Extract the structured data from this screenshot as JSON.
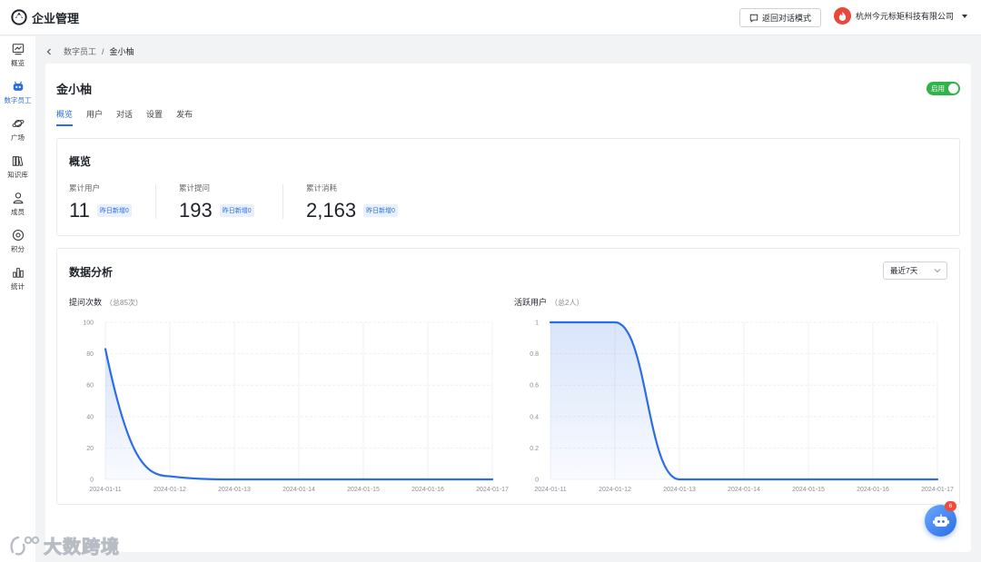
{
  "topbar": {
    "app_title": "企业管理",
    "back_chat_label": "返回对话模式",
    "company_name": "杭州今元标矩科技有限公司"
  },
  "sidenav": {
    "items": [
      {
        "label": "概览",
        "icon": "chart-line-icon"
      },
      {
        "label": "数字员工",
        "icon": "robot-icon",
        "active": true
      },
      {
        "label": "广场",
        "icon": "planet-icon"
      },
      {
        "label": "知识库",
        "icon": "books-icon"
      },
      {
        "label": "成员",
        "icon": "user-icon"
      },
      {
        "label": "积分",
        "icon": "coin-icon"
      },
      {
        "label": "统计",
        "icon": "bar-chart-icon"
      }
    ]
  },
  "breadcrumb": {
    "parent": "数字员工",
    "separator": "/",
    "current": "金小柚"
  },
  "employee": {
    "name": "金小柚",
    "toggle_label": "启用",
    "enabled": true
  },
  "tabs": [
    {
      "label": "概览",
      "active": true
    },
    {
      "label": "用户"
    },
    {
      "label": "对话"
    },
    {
      "label": "设置"
    },
    {
      "label": "发布"
    }
  ],
  "overview": {
    "title": "概览",
    "stats": [
      {
        "label": "累计用户",
        "value": "11",
        "badge": "昨日新增0"
      },
      {
        "label": "累计提问",
        "value": "193",
        "badge": "昨日新增0"
      },
      {
        "label": "累计消耗",
        "value": "2,163",
        "badge": "昨日新增0"
      }
    ]
  },
  "analysis": {
    "title": "数据分析",
    "range_selected": "最近7天"
  },
  "chart_data": [
    {
      "type": "area",
      "title": "提问次数",
      "subtitle": "（总85次）",
      "x": [
        "2024-01-11",
        "2024-01-12",
        "2024-01-13",
        "2024-01-14",
        "2024-01-15",
        "2024-01-16",
        "2024-01-17"
      ],
      "series": [
        {
          "values": [
            83,
            2,
            0,
            0,
            0,
            0,
            0
          ]
        }
      ],
      "ylim": [
        0,
        100
      ],
      "yticks": [
        "0",
        "20",
        "40",
        "60",
        "80",
        "100"
      ],
      "smooth": true,
      "color": "#2b6de5"
    },
    {
      "type": "area",
      "title": "活跃用户",
      "subtitle": "（总2人）",
      "x": [
        "2024-01-11",
        "2024-01-12",
        "2024-01-13",
        "2024-01-14",
        "2024-01-15",
        "2024-01-16",
        "2024-01-17"
      ],
      "series": [
        {
          "values": [
            1,
            1,
            0,
            0,
            0,
            0,
            0
          ]
        }
      ],
      "ylim": [
        0,
        1
      ],
      "yticks": [
        "0",
        "0.2",
        "0.4",
        "0.6",
        "0.8",
        "1"
      ],
      "smooth": true,
      "color": "#2b6de5"
    }
  ],
  "watermark": {
    "text": "大数跨境"
  },
  "assistant": {
    "badge": "6"
  }
}
